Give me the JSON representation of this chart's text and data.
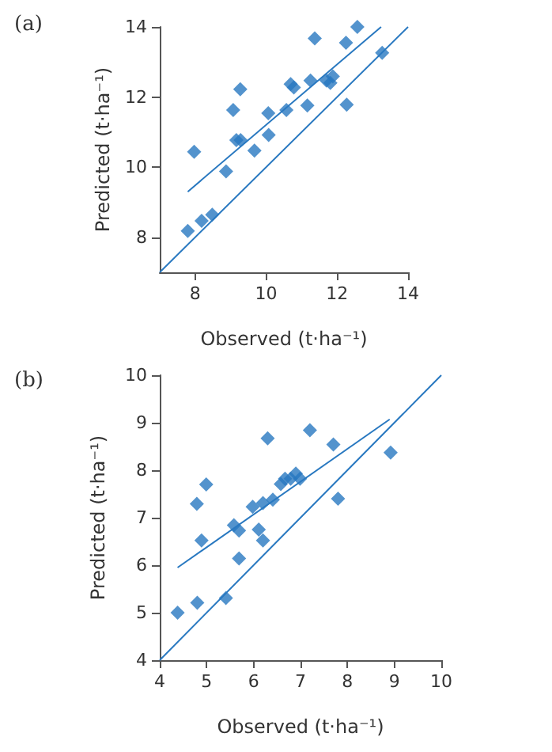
{
  "chart_data": [
    {
      "type": "scatter",
      "title": "(a)",
      "xlabel": "Observed (t·ha⁻¹)",
      "ylabel": "Predicted (t·ha⁻¹)",
      "xlim": [
        7,
        14
      ],
      "ylim": [
        7,
        14
      ],
      "xticks": [
        8,
        10,
        12,
        14
      ],
      "yticks": [
        8,
        10,
        12,
        14
      ],
      "grid": false,
      "marker": "diamond",
      "series": [
        {
          "color": "#2878c0",
          "x": [
            7.79,
            7.97,
            8.18,
            8.48,
            8.87,
            9.07,
            9.16,
            9.28,
            9.27,
            9.67,
            10.06,
            10.07,
            10.57,
            10.69,
            10.78,
            11.16,
            11.25,
            11.37,
            11.7,
            11.81,
            11.88,
            12.25,
            12.27,
            12.57,
            13.27
          ],
          "values": [
            8.18,
            10.44,
            8.47,
            8.64,
            9.88,
            11.63,
            10.77,
            10.77,
            12.22,
            10.47,
            11.54,
            10.92,
            11.63,
            12.37,
            12.27,
            11.76,
            12.47,
            13.67,
            12.47,
            12.4,
            12.59,
            13.55,
            11.78,
            14.0,
            13.26
          ]
        },
        {
          "type": "line",
          "color": "#2878c0",
          "marker": "none",
          "x": [
            7.79,
            13.24
          ],
          "values": [
            9.3,
            14.0
          ]
        },
        {
          "type": "line",
          "color": "#2878c0",
          "marker": "none",
          "x": [
            7,
            14
          ],
          "values": [
            7,
            14
          ]
        }
      ]
    },
    {
      "type": "scatter",
      "title": "(b)",
      "xlabel": "Observed (t·ha⁻¹)",
      "ylabel": "Predicted (t·ha⁻¹)",
      "xlim": [
        4,
        10
      ],
      "ylim": [
        4,
        10
      ],
      "xticks": [
        4,
        5,
        6,
        7,
        8,
        9,
        10
      ],
      "yticks": [
        4,
        5,
        6,
        7,
        8,
        9,
        10
      ],
      "grid": false,
      "marker": "diamond",
      "series": [
        {
          "color": "#2878c0",
          "x": [
            4.38,
            4.8,
            4.79,
            4.89,
            4.99,
            5.41,
            5.58,
            5.69,
            5.69,
            5.98,
            6.11,
            6.2,
            6.2,
            6.3,
            6.41,
            6.58,
            6.67,
            6.79,
            6.9,
            6.99,
            7.2,
            7.7,
            7.8,
            8.92
          ],
          "values": [
            5.0,
            5.21,
            7.29,
            6.52,
            7.7,
            5.31,
            6.84,
            6.73,
            6.14,
            7.23,
            6.75,
            6.52,
            7.31,
            8.67,
            7.38,
            7.71,
            7.82,
            7.82,
            7.93,
            7.82,
            8.84,
            8.54,
            7.4,
            8.37
          ]
        },
        {
          "type": "line",
          "color": "#2878c0",
          "marker": "none",
          "x": [
            4.38,
            8.9
          ],
          "values": [
            5.95,
            9.07
          ]
        },
        {
          "type": "line",
          "color": "#2878c0",
          "marker": "none",
          "x": [
            4,
            10
          ],
          "values": [
            4,
            10
          ]
        }
      ]
    }
  ]
}
